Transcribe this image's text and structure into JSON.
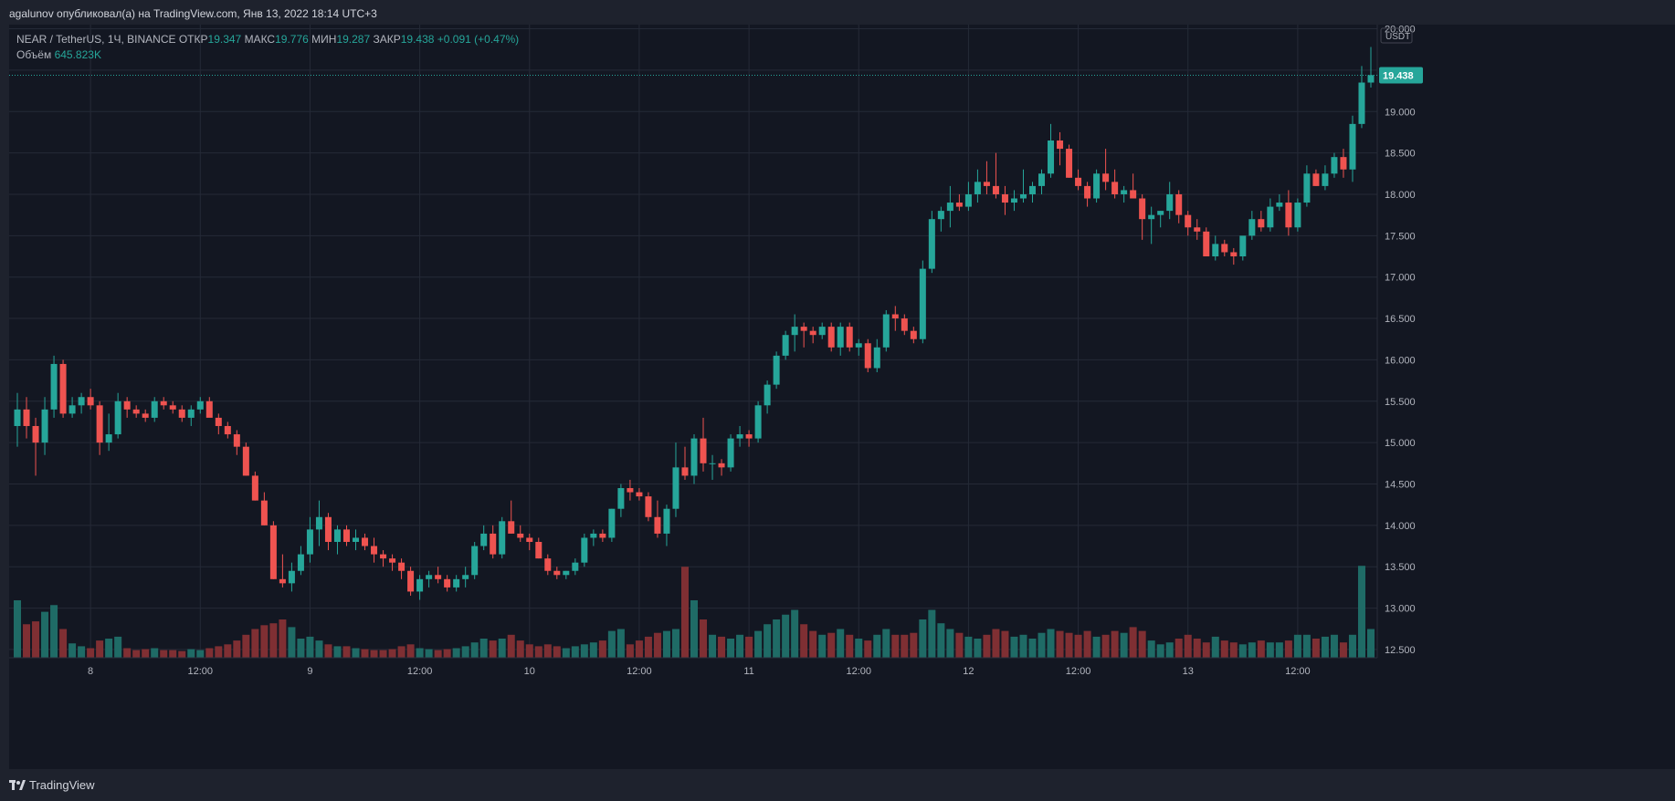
{
  "header": {
    "publisher": "agalunov опубликовал(а) на TradingView.com, Янв 13, 2022 18:14 UTC+3"
  },
  "legend": {
    "symbol": "NEAR / TetherUS, 1Ч, BINANCE",
    "open_label": "ОТКР",
    "open": "19.347",
    "high_label": "МАКС",
    "high": "19.776",
    "low_label": "МИН",
    "low": "19.287",
    "close_label": "ЗАКР",
    "close": "19.438",
    "change": "+0.091 (+0.47%)",
    "volume_label": "Объём",
    "volume": "645.823K"
  },
  "footer": {
    "brand": "TradingView"
  },
  "colors": {
    "up": "#26a69a",
    "down": "#ef5350",
    "up_vol": "#1f6b66",
    "down_vol": "#7f2f33",
    "bg": "#131722",
    "grid": "#252a37",
    "axis_text": "#b2b5be"
  },
  "chart_data": {
    "type": "candlestick",
    "currency": "USDT",
    "last_price": "19.438",
    "y_ticks": [
      "12.500",
      "13.000",
      "13.500",
      "14.000",
      "14.500",
      "15.000",
      "15.500",
      "16.000",
      "16.500",
      "17.000",
      "17.500",
      "18.000",
      "18.500",
      "19.000",
      "19.500",
      "20.000"
    ],
    "x_ticks": [
      {
        "bar": 8,
        "label": "8"
      },
      {
        "bar": 20,
        "label": "12:00"
      },
      {
        "bar": 32,
        "label": "9"
      },
      {
        "bar": 44,
        "label": "12:00"
      },
      {
        "bar": 56,
        "label": "10"
      },
      {
        "bar": 68,
        "label": "12:00"
      },
      {
        "bar": 80,
        "label": "11"
      },
      {
        "bar": 92,
        "label": "12:00"
      },
      {
        "bar": 104,
        "label": "12"
      },
      {
        "bar": 116,
        "label": "12:00"
      },
      {
        "bar": 128,
        "label": "13"
      },
      {
        "bar": 140,
        "label": "12:00"
      }
    ],
    "ohlcv": [
      [
        15.2,
        15.6,
        14.95,
        15.4,
        60
      ],
      [
        15.4,
        15.55,
        15.05,
        15.2,
        35
      ],
      [
        15.2,
        15.3,
        14.6,
        15.0,
        38
      ],
      [
        15.0,
        15.55,
        14.85,
        15.4,
        48
      ],
      [
        15.4,
        16.05,
        15.3,
        15.95,
        55
      ],
      [
        15.95,
        16.0,
        15.3,
        15.35,
        30
      ],
      [
        15.35,
        15.55,
        15.3,
        15.45,
        15
      ],
      [
        15.45,
        15.6,
        15.35,
        15.55,
        12
      ],
      [
        15.55,
        15.65,
        15.4,
        15.45,
        10
      ],
      [
        15.45,
        15.5,
        14.85,
        15.0,
        18
      ],
      [
        15.0,
        15.35,
        14.9,
        15.1,
        20
      ],
      [
        15.1,
        15.6,
        15.05,
        15.5,
        22
      ],
      [
        15.5,
        15.55,
        15.3,
        15.4,
        10
      ],
      [
        15.4,
        15.45,
        15.3,
        15.35,
        8
      ],
      [
        15.35,
        15.4,
        15.25,
        15.3,
        9
      ],
      [
        15.3,
        15.55,
        15.25,
        15.5,
        10
      ],
      [
        15.5,
        15.55,
        15.4,
        15.45,
        8
      ],
      [
        15.45,
        15.5,
        15.35,
        15.4,
        8
      ],
      [
        15.4,
        15.45,
        15.25,
        15.3,
        7
      ],
      [
        15.3,
        15.45,
        15.2,
        15.4,
        9
      ],
      [
        15.4,
        15.55,
        15.35,
        15.5,
        8
      ],
      [
        15.5,
        15.55,
        15.35,
        15.3,
        10
      ],
      [
        15.3,
        15.35,
        15.1,
        15.2,
        12
      ],
      [
        15.2,
        15.25,
        15.05,
        15.1,
        14
      ],
      [
        15.1,
        15.15,
        14.85,
        14.95,
        18
      ],
      [
        14.95,
        15.0,
        14.6,
        14.6,
        24
      ],
      [
        14.6,
        14.65,
        14.3,
        14.3,
        30
      ],
      [
        14.3,
        14.4,
        14.0,
        14.0,
        34
      ],
      [
        14.0,
        14.05,
        13.35,
        13.35,
        36
      ],
      [
        13.35,
        13.65,
        13.25,
        13.3,
        40
      ],
      [
        13.3,
        13.55,
        13.2,
        13.45,
        32
      ],
      [
        13.45,
        13.75,
        13.4,
        13.65,
        20
      ],
      [
        13.65,
        14.1,
        13.55,
        13.95,
        22
      ],
      [
        13.95,
        14.3,
        13.75,
        14.1,
        18
      ],
      [
        14.1,
        14.15,
        13.7,
        13.8,
        14
      ],
      [
        13.8,
        14.0,
        13.65,
        13.95,
        12
      ],
      [
        13.95,
        14.0,
        13.75,
        13.8,
        12
      ],
      [
        13.8,
        13.95,
        13.7,
        13.85,
        10
      ],
      [
        13.85,
        13.9,
        13.7,
        13.75,
        9
      ],
      [
        13.75,
        13.85,
        13.55,
        13.65,
        8
      ],
      [
        13.65,
        13.7,
        13.5,
        13.6,
        8
      ],
      [
        13.6,
        13.65,
        13.45,
        13.55,
        9
      ],
      [
        13.55,
        13.6,
        13.35,
        13.45,
        12
      ],
      [
        13.45,
        13.5,
        13.15,
        13.2,
        14
      ],
      [
        13.2,
        13.4,
        13.1,
        13.35,
        10
      ],
      [
        13.35,
        13.45,
        13.25,
        13.4,
        9
      ],
      [
        13.4,
        13.5,
        13.3,
        13.35,
        8
      ],
      [
        13.35,
        13.4,
        13.2,
        13.25,
        9
      ],
      [
        13.25,
        13.4,
        13.2,
        13.35,
        10
      ],
      [
        13.35,
        13.5,
        13.25,
        13.4,
        12
      ],
      [
        13.4,
        13.8,
        13.35,
        13.75,
        16
      ],
      [
        13.75,
        14.0,
        13.7,
        13.9,
        20
      ],
      [
        13.9,
        14.0,
        13.6,
        13.65,
        18
      ],
      [
        13.65,
        14.1,
        13.6,
        14.05,
        20
      ],
      [
        14.05,
        14.3,
        13.9,
        13.9,
        24
      ],
      [
        13.9,
        14.0,
        13.8,
        13.85,
        18
      ],
      [
        13.85,
        13.9,
        13.7,
        13.8,
        14
      ],
      [
        13.8,
        13.85,
        13.6,
        13.6,
        12
      ],
      [
        13.6,
        13.65,
        13.4,
        13.45,
        14
      ],
      [
        13.45,
        13.5,
        13.35,
        13.4,
        12
      ],
      [
        13.4,
        13.45,
        13.35,
        13.45,
        10
      ],
      [
        13.45,
        13.6,
        13.4,
        13.55,
        12
      ],
      [
        13.55,
        13.9,
        13.5,
        13.85,
        14
      ],
      [
        13.85,
        13.95,
        13.75,
        13.9,
        16
      ],
      [
        13.9,
        13.95,
        13.8,
        13.85,
        18
      ],
      [
        13.85,
        14.2,
        13.8,
        14.2,
        28
      ],
      [
        14.2,
        14.5,
        14.1,
        14.45,
        30
      ],
      [
        14.45,
        14.55,
        14.3,
        14.4,
        14
      ],
      [
        14.4,
        14.45,
        14.3,
        14.35,
        18
      ],
      [
        14.35,
        14.4,
        14.05,
        14.1,
        22
      ],
      [
        14.1,
        14.3,
        13.85,
        13.9,
        26
      ],
      [
        13.9,
        14.25,
        13.75,
        14.2,
        28
      ],
      [
        14.2,
        15.0,
        14.1,
        14.7,
        30
      ],
      [
        14.7,
        14.95,
        14.55,
        14.6,
        95
      ],
      [
        14.6,
        15.1,
        14.5,
        15.05,
        60
      ],
      [
        15.05,
        15.3,
        14.65,
        14.75,
        40
      ],
      [
        14.75,
        14.85,
        14.55,
        14.75,
        24
      ],
      [
        14.75,
        14.8,
        14.6,
        14.7,
        22
      ],
      [
        14.7,
        15.1,
        14.65,
        15.05,
        20
      ],
      [
        15.05,
        15.2,
        14.95,
        15.1,
        24
      ],
      [
        15.1,
        15.15,
        14.95,
        15.05,
        22
      ],
      [
        15.05,
        15.5,
        15.0,
        15.45,
        28
      ],
      [
        15.45,
        15.75,
        15.35,
        15.7,
        35
      ],
      [
        15.7,
        16.1,
        15.65,
        16.05,
        40
      ],
      [
        16.05,
        16.35,
        16.0,
        16.3,
        45
      ],
      [
        16.3,
        16.55,
        16.1,
        16.4,
        50
      ],
      [
        16.4,
        16.45,
        16.15,
        16.35,
        35
      ],
      [
        16.35,
        16.4,
        16.2,
        16.3,
        28
      ],
      [
        16.3,
        16.45,
        16.25,
        16.4,
        24
      ],
      [
        16.4,
        16.45,
        16.1,
        16.15,
        26
      ],
      [
        16.15,
        16.45,
        16.05,
        16.4,
        30
      ],
      [
        16.4,
        16.45,
        16.1,
        16.15,
        24
      ],
      [
        16.15,
        16.25,
        16.05,
        16.2,
        20
      ],
      [
        16.2,
        16.25,
        15.85,
        15.9,
        18
      ],
      [
        15.9,
        16.25,
        15.85,
        16.15,
        24
      ],
      [
        16.15,
        16.6,
        16.1,
        16.55,
        30
      ],
      [
        16.55,
        16.65,
        16.35,
        16.5,
        24
      ],
      [
        16.5,
        16.55,
        16.3,
        16.35,
        24
      ],
      [
        16.35,
        16.4,
        16.2,
        16.25,
        26
      ],
      [
        16.25,
        17.2,
        16.2,
        17.1,
        40
      ],
      [
        17.1,
        17.8,
        17.05,
        17.7,
        50
      ],
      [
        17.7,
        17.85,
        17.55,
        17.8,
        36
      ],
      [
        17.8,
        18.1,
        17.6,
        17.9,
        30
      ],
      [
        17.9,
        18.0,
        17.8,
        17.85,
        26
      ],
      [
        17.85,
        18.15,
        17.8,
        18.0,
        22
      ],
      [
        18.0,
        18.3,
        17.9,
        18.15,
        20
      ],
      [
        18.15,
        18.4,
        18.0,
        18.1,
        24
      ],
      [
        18.1,
        18.5,
        17.95,
        18.0,
        30
      ],
      [
        18.0,
        18.1,
        17.75,
        17.9,
        28
      ],
      [
        17.9,
        18.05,
        17.8,
        17.95,
        22
      ],
      [
        17.95,
        18.3,
        17.9,
        18.0,
        24
      ],
      [
        18.0,
        18.15,
        17.9,
        18.1,
        20
      ],
      [
        18.1,
        18.3,
        18.0,
        18.25,
        26
      ],
      [
        18.25,
        18.85,
        18.2,
        18.65,
        30
      ],
      [
        18.65,
        18.75,
        18.35,
        18.55,
        28
      ],
      [
        18.55,
        18.6,
        18.2,
        18.2,
        26
      ],
      [
        18.2,
        18.3,
        18.05,
        18.1,
        24
      ],
      [
        18.1,
        18.15,
        17.85,
        17.95,
        28
      ],
      [
        17.95,
        18.3,
        17.9,
        18.25,
        22
      ],
      [
        18.25,
        18.55,
        18.05,
        18.15,
        24
      ],
      [
        18.15,
        18.3,
        17.95,
        18.0,
        28
      ],
      [
        18.0,
        18.1,
        17.9,
        18.05,
        26
      ],
      [
        18.05,
        18.25,
        17.95,
        17.95,
        32
      ],
      [
        17.95,
        18.0,
        17.45,
        17.7,
        28
      ],
      [
        17.7,
        17.85,
        17.4,
        17.75,
        18
      ],
      [
        17.75,
        17.8,
        17.6,
        17.8,
        14
      ],
      [
        17.8,
        18.15,
        17.7,
        18.0,
        16
      ],
      [
        18.0,
        18.05,
        17.65,
        17.75,
        20
      ],
      [
        17.75,
        17.8,
        17.5,
        17.6,
        24
      ],
      [
        17.6,
        17.7,
        17.45,
        17.55,
        20
      ],
      [
        17.55,
        17.6,
        17.25,
        17.25,
        16
      ],
      [
        17.25,
        17.5,
        17.2,
        17.4,
        22
      ],
      [
        17.4,
        17.45,
        17.25,
        17.3,
        18
      ],
      [
        17.3,
        17.35,
        17.15,
        17.25,
        16
      ],
      [
        17.25,
        17.4,
        17.2,
        17.5,
        14
      ],
      [
        17.5,
        17.8,
        17.45,
        17.7,
        16
      ],
      [
        17.7,
        17.8,
        17.55,
        17.6,
        18
      ],
      [
        17.6,
        17.95,
        17.55,
        17.85,
        16
      ],
      [
        17.85,
        18.0,
        17.8,
        17.9,
        16
      ],
      [
        17.9,
        18.05,
        17.5,
        17.6,
        18
      ],
      [
        17.6,
        17.95,
        17.55,
        17.9,
        24
      ],
      [
        17.9,
        18.35,
        17.85,
        18.25,
        24
      ],
      [
        18.25,
        18.3,
        18.1,
        18.1,
        20
      ],
      [
        18.1,
        18.35,
        18.05,
        18.25,
        22
      ],
      [
        18.25,
        18.5,
        18.2,
        18.45,
        24
      ],
      [
        18.45,
        18.55,
        18.2,
        18.3,
        16
      ],
      [
        18.3,
        18.95,
        18.15,
        18.85,
        24
      ],
      [
        18.85,
        19.55,
        18.8,
        19.35,
        96
      ],
      [
        19.35,
        19.78,
        19.29,
        19.44,
        30
      ]
    ]
  }
}
